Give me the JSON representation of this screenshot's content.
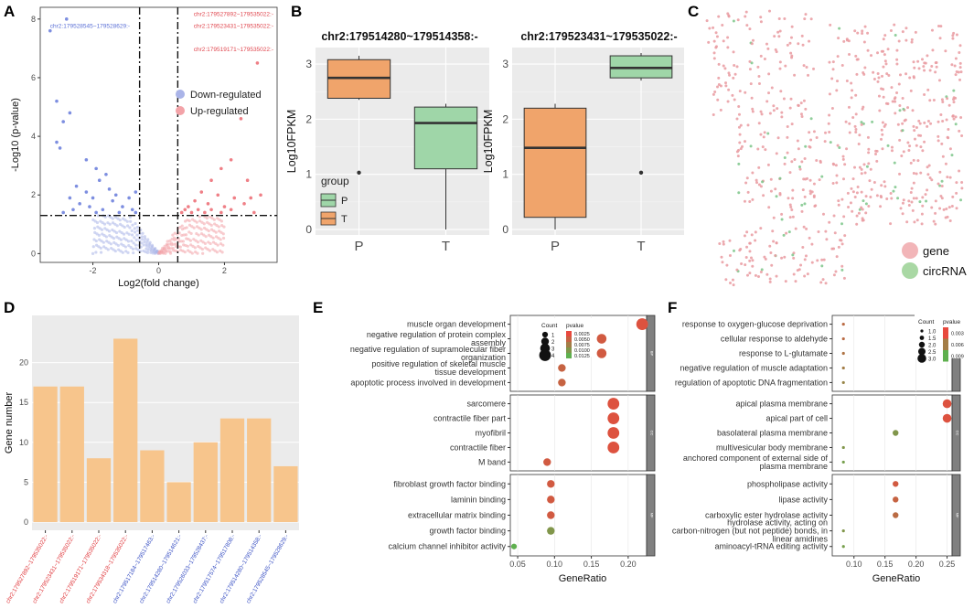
{
  "panel_letters": [
    "A",
    "B",
    "C",
    "D",
    "E",
    "F"
  ],
  "colors": {
    "down": "#aab4e8",
    "up": "#f3a3a8",
    "P": "#9fd6a8",
    "T": "#f0a46b",
    "bar": "#f7c58c",
    "dot_high": "#e8493e",
    "dot_low": "#5fb04f",
    "gene": "#f2b5b8",
    "circRNA": "#a9d8a4",
    "panel_bg": "#ebebeb"
  },
  "chart_data": [
    {
      "id": "A",
      "type": "scatter",
      "title": "",
      "xlabel": "Log2(fold change)",
      "ylabel": "-Log10 (p-value)",
      "xlim": [
        -3.6,
        3.6
      ],
      "ylim": [
        -0.3,
        8.4
      ],
      "xticks": [
        "-2",
        "0",
        "2"
      ],
      "yticks": [
        "0",
        "2",
        "4",
        "6",
        "8"
      ],
      "legend": [
        "Down-regulated",
        "Up-regulated"
      ],
      "vlines": [
        -0.58,
        0.58
      ],
      "hline": 1.3,
      "annotations": [
        {
          "text": "chr2:179528545~179528629:-",
          "color": "down",
          "x": -3.3,
          "y": 7.6
        },
        {
          "text": "chr2:179527892~179535022:-",
          "color": "up",
          "x": 1.6,
          "y": 8.1
        },
        {
          "text": "chr2:179523431~179535022:-",
          "color": "up",
          "x": 1.6,
          "y": 7.7
        },
        {
          "text": "chr2:179519171~179535022:-",
          "color": "up",
          "x": 1.6,
          "y": 6.9
        }
      ],
      "down_points": [
        [
          -3.3,
          7.6
        ],
        [
          -2.8,
          8.0
        ],
        [
          -3.1,
          5.2
        ],
        [
          -2.9,
          4.5
        ],
        [
          -3.0,
          3.6
        ],
        [
          -2.7,
          4.8
        ],
        [
          -3.1,
          3.8
        ],
        [
          -2.2,
          3.2
        ],
        [
          -1.9,
          2.9
        ],
        [
          -1.6,
          2.7
        ],
        [
          -2.5,
          2.3
        ],
        [
          -2.2,
          2.1
        ],
        [
          -2.0,
          1.9
        ],
        [
          -1.8,
          2.5
        ],
        [
          -1.5,
          2.2
        ],
        [
          -1.3,
          2.0
        ],
        [
          -2.7,
          1.9
        ],
        [
          -2.4,
          1.7
        ],
        [
          -2.1,
          1.6
        ],
        [
          -1.7,
          1.5
        ],
        [
          -1.4,
          1.8
        ],
        [
          -1.1,
          1.6
        ],
        [
          -0.9,
          1.9
        ],
        [
          -0.8,
          1.5
        ],
        [
          -2.9,
          1.4
        ],
        [
          -2.6,
          1.5
        ],
        [
          -1.9,
          1.4
        ],
        [
          -1.2,
          1.4
        ],
        [
          -0.7,
          1.4
        ],
        [
          -0.7,
          2.1
        ]
      ],
      "up_points": [
        [
          3.0,
          6.5
        ],
        [
          2.5,
          4.6
        ],
        [
          2.2,
          3.2
        ],
        [
          1.9,
          2.9
        ],
        [
          1.6,
          2.5
        ],
        [
          2.7,
          2.5
        ],
        [
          1.3,
          2.1
        ],
        [
          1.8,
          2.0
        ],
        [
          2.3,
          1.9
        ],
        [
          1.1,
          1.8
        ],
        [
          1.5,
          1.7
        ],
        [
          2.0,
          1.6
        ],
        [
          2.6,
          1.7
        ],
        [
          0.9,
          1.6
        ],
        [
          0.8,
          1.5
        ],
        [
          1.2,
          1.5
        ],
        [
          1.6,
          1.5
        ],
        [
          2.2,
          1.5
        ],
        [
          2.9,
          1.4
        ],
        [
          0.7,
          1.4
        ],
        [
          1.0,
          1.4
        ],
        [
          1.4,
          1.4
        ],
        [
          1.9,
          1.4
        ],
        [
          3.1,
          2.0
        ],
        [
          2.8,
          1.9
        ]
      ]
    },
    {
      "id": "B1",
      "type": "box",
      "title": "chr2:179514280~179514358:-",
      "ylabel": "Log10FPKM",
      "categories": [
        "P",
        "T"
      ],
      "ylim": [
        -0.1,
        3.3
      ],
      "yticks": [
        "0",
        "1",
        "2",
        "3"
      ],
      "boxes": [
        {
          "group": "T",
          "q1": 2.38,
          "median": 2.75,
          "q3": 3.08,
          "min": 2.35,
          "max": 3.15,
          "outliers": [
            1.03
          ]
        },
        {
          "group": "P",
          "q1": 1.1,
          "median": 1.93,
          "q3": 2.22,
          "min": 0.0,
          "max": 2.28,
          "outliers": []
        }
      ],
      "legend_title": "group",
      "legend": [
        "P",
        "T"
      ]
    },
    {
      "id": "B2",
      "type": "box",
      "title": "chr2:179523431~179535022:-",
      "ylabel": "Log10FPKM",
      "categories": [
        "P",
        "T"
      ],
      "ylim": [
        -0.1,
        3.3
      ],
      "yticks": [
        "0",
        "1",
        "2",
        "3"
      ],
      "boxes": [
        {
          "group": "T",
          "q1": 0.22,
          "median": 1.48,
          "q3": 2.2,
          "min": 0.0,
          "max": 2.28,
          "outliers": []
        },
        {
          "group": "P",
          "q1": 2.75,
          "median": 2.93,
          "q3": 3.15,
          "min": 2.7,
          "max": 3.2,
          "outliers": [
            1.03
          ]
        }
      ]
    },
    {
      "id": "C",
      "type": "network",
      "legend": [
        "gene",
        "circRNA"
      ]
    },
    {
      "id": "D",
      "type": "bar",
      "ylabel": "Gene number",
      "ylim": [
        0,
        25
      ],
      "yticks": [
        "0",
        "5",
        "10",
        "15",
        "20"
      ],
      "categories": [
        "chr2:179527892~179535022:-",
        "chr2:179523431~179535022:-",
        "chr2:179519171~179535022:-",
        "chr2:179534318~179535022:-",
        "chr2:179517184~179517463:-",
        "chr2:179514280~179514621:-",
        "chr2:179526033~179528437:-",
        "chr2:179517574~179517808:-",
        "chr2:179514280~179514358:-",
        "chr2:179528545~179528629:-"
      ],
      "label_colors": [
        "up",
        "up",
        "up",
        "up",
        "down",
        "down",
        "down",
        "down",
        "down",
        "down"
      ],
      "values": [
        17,
        17,
        8,
        23,
        9,
        5,
        10,
        13,
        13,
        7
      ]
    },
    {
      "id": "E",
      "type": "dot",
      "xlabel": "GeneRatio",
      "xlim": [
        0.04,
        0.225
      ],
      "xticks": [
        "0.05",
        "0.10",
        "0.15",
        "0.20"
      ],
      "size_legend_title": "Count",
      "size_legend": [
        "1",
        "2",
        "3",
        "4"
      ],
      "color_legend_title": "pvalue",
      "color_legend": [
        "0.0025",
        "0.0050",
        "0.0075",
        "0.0100",
        "0.0125"
      ],
      "facets": [
        {
          "strip": "BP",
          "terms": [
            {
              "label": "muscle organ development",
              "x": 0.219,
              "count": 4,
              "p": 0.001
            },
            {
              "label": "negative regulation of protein complex assembly",
              "x": 0.164,
              "count": 3,
              "p": 0.002
            },
            {
              "label": "negative regulation of supramolecular fiber organization",
              "x": 0.164,
              "count": 3,
              "p": 0.002
            },
            {
              "label": "positive regulation of skeletal muscle tissue development",
              "x": 0.11,
              "count": 2,
              "p": 0.003
            },
            {
              "label": "apoptotic process involved in development",
              "x": 0.11,
              "count": 2,
              "p": 0.003
            }
          ]
        },
        {
          "strip": "CC",
          "terms": [
            {
              "label": "sarcomere",
              "x": 0.18,
              "count": 4,
              "p": 0.001
            },
            {
              "label": "contractile fiber part",
              "x": 0.18,
              "count": 4,
              "p": 0.001
            },
            {
              "label": "myofibril",
              "x": 0.18,
              "count": 4,
              "p": 0.001
            },
            {
              "label": "contractile fiber",
              "x": 0.18,
              "count": 4,
              "p": 0.001
            },
            {
              "label": "M band",
              "x": 0.09,
              "count": 2,
              "p": 0.002
            }
          ]
        },
        {
          "strip": "MF",
          "terms": [
            {
              "label": "fibroblast growth factor binding",
              "x": 0.095,
              "count": 2,
              "p": 0.002
            },
            {
              "label": "laminin binding",
              "x": 0.095,
              "count": 2,
              "p": 0.002
            },
            {
              "label": "extracellular matrix binding",
              "x": 0.095,
              "count": 2,
              "p": 0.002
            },
            {
              "label": "growth factor binding",
              "x": 0.095,
              "count": 2,
              "p": 0.009
            },
            {
              "label": "calcium channel inhibitor activity",
              "x": 0.045,
              "count": 1,
              "p": 0.012
            }
          ]
        }
      ]
    },
    {
      "id": "F",
      "type": "dot",
      "xlabel": "GeneRatio",
      "xlim": [
        0.065,
        0.258
      ],
      "xticks": [
        "0.10",
        "0.15",
        "0.20",
        "0.25"
      ],
      "size_legend_title": "Count",
      "size_legend": [
        "1.0",
        "1.5",
        "2.0",
        "2.5",
        "3.0"
      ],
      "color_legend_title": "pvalue",
      "color_legend": [
        "0.003",
        "0.006",
        "0.009"
      ],
      "facets": [
        {
          "strip": "BP",
          "terms": [
            {
              "label": "response to oxygen-glucose deprivation",
              "x": 0.083,
              "count": 1,
              "p": 0.004
            },
            {
              "label": "cellular response to aldehyde",
              "x": 0.083,
              "count": 1,
              "p": 0.004
            },
            {
              "label": "response to L-glutamate",
              "x": 0.083,
              "count": 1,
              "p": 0.005
            },
            {
              "label": "negative regulation of muscle adaptation",
              "x": 0.083,
              "count": 1,
              "p": 0.006
            },
            {
              "label": "regulation of apoptotic DNA fragmentation",
              "x": 0.083,
              "count": 1,
              "p": 0.007
            }
          ]
        },
        {
          "strip": "CC",
          "terms": [
            {
              "label": "apical plasma membrane",
              "x": 0.25,
              "count": 3,
              "p": 0.001
            },
            {
              "label": "apical part of cell",
              "x": 0.25,
              "count": 3,
              "p": 0.001
            },
            {
              "label": "basolateral plasma membrane",
              "x": 0.167,
              "count": 2,
              "p": 0.009
            },
            {
              "label": "multivesicular body membrane",
              "x": 0.083,
              "count": 1,
              "p": 0.009
            },
            {
              "label": "anchored component of external side of plasma membrane",
              "x": 0.083,
              "count": 1,
              "p": 0.01
            }
          ]
        },
        {
          "strip": "MF",
          "terms": [
            {
              "label": "phospholipase activity",
              "x": 0.167,
              "count": 2,
              "p": 0.002
            },
            {
              "label": "lipase activity",
              "x": 0.167,
              "count": 2,
              "p": 0.003
            },
            {
              "label": "carboxylic ester hydrolase activity",
              "x": 0.167,
              "count": 2,
              "p": 0.004
            },
            {
              "label": "hydrolase activity, acting on carbon-nitrogen (but not peptide) bonds, in linear amidines",
              "x": 0.083,
              "count": 1,
              "p": 0.009
            },
            {
              "label": "aminoacyl-tRNA editing activity",
              "x": 0.083,
              "count": 1,
              "p": 0.01
            }
          ]
        }
      ]
    }
  ]
}
